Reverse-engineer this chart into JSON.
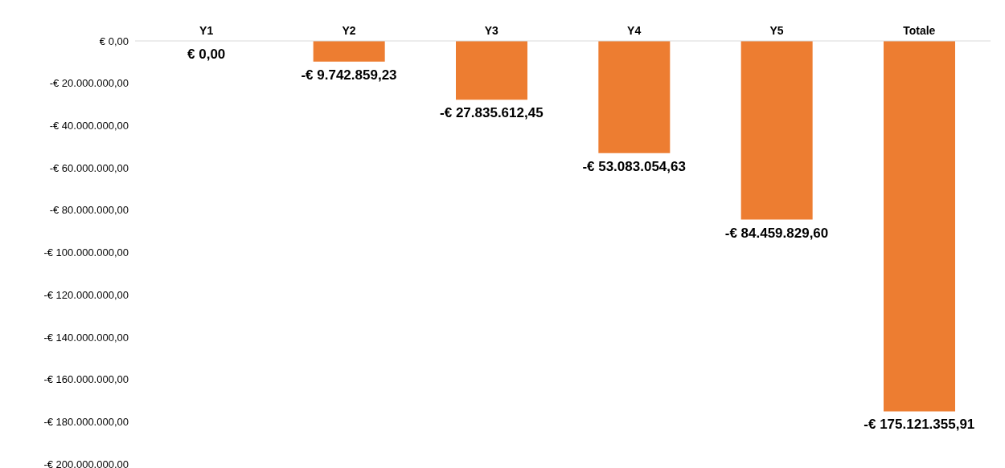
{
  "chart_data": {
    "type": "bar",
    "categories": [
      "Y1",
      "Y2",
      "Y3",
      "Y4",
      "Y5",
      "Totale"
    ],
    "values": [
      0,
      -9742859.23,
      -27835612.45,
      -53083054.63,
      -84459829.6,
      -175121355.91
    ],
    "color": "#ed7d31",
    "value_labels": [
      "€ 0,00",
      "-€ 9.742.859,23",
      "-€ 27.835.612,45",
      "-€ 53.083.054,63",
      "-€ 84.459.829,60",
      "-€ 175.121.355,91"
    ],
    "ylim": [
      -200000000,
      0
    ],
    "yticks": [
      {
        "value": 0,
        "label": "€ 0,00"
      },
      {
        "value": -20000000,
        "label": "-€ 20.000.000,00"
      },
      {
        "value": -40000000,
        "label": "-€ 40.000.000,00"
      },
      {
        "value": -60000000,
        "label": "-€ 60.000.000,00"
      },
      {
        "value": -80000000,
        "label": "-€ 80.000.000,00"
      },
      {
        "value": -100000000,
        "label": "-€ 100.000.000,00"
      },
      {
        "value": -120000000,
        "label": "-€ 120.000.000,00"
      },
      {
        "value": -140000000,
        "label": "-€ 140.000.000,00"
      },
      {
        "value": -160000000,
        "label": "-€ 160.000.000,00"
      },
      {
        "value": -180000000,
        "label": "-€ 180.000.000,00"
      },
      {
        "value": -200000000,
        "label": "-€ 200.000.000,00"
      }
    ]
  }
}
